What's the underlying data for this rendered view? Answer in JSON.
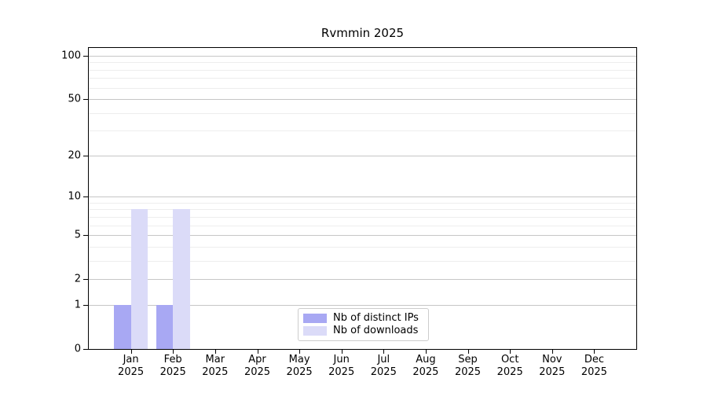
{
  "chart_data": {
    "type": "bar",
    "title": "Rvmmin 2025",
    "xlabel": "",
    "ylabel": "",
    "categories": [
      "Jan",
      "Feb",
      "Mar",
      "Apr",
      "May",
      "Jun",
      "Jul",
      "Aug",
      "Sep",
      "Oct",
      "Nov",
      "Dec"
    ],
    "x_year_label": "2025",
    "series": [
      {
        "name": "Nb of distinct IPs",
        "color": "#a8a8f3",
        "values": [
          1,
          1,
          0,
          0,
          0,
          0,
          0,
          0,
          0,
          0,
          0,
          0
        ]
      },
      {
        "name": "Nb of downloads",
        "color": "#dbdbf8",
        "values": [
          8,
          8,
          0,
          0,
          0,
          0,
          0,
          0,
          0,
          0,
          0,
          0
        ]
      }
    ],
    "y_scale": "log1p",
    "ylim": [
      0,
      112
    ],
    "y_ticks": [
      0,
      1,
      2,
      5,
      10,
      20,
      50,
      100
    ],
    "y_minor_gridlines": [
      3,
      4,
      6,
      7,
      8,
      9,
      30,
      40,
      60,
      70,
      80,
      90
    ],
    "grid": "horizontal",
    "legend_position": "lower center inside",
    "colors": {
      "spine": "#000000",
      "major_grid": "#c6c6c6",
      "minor_grid": "#ededed",
      "legend_border": "#cccccc",
      "background": "#ffffff"
    }
  }
}
